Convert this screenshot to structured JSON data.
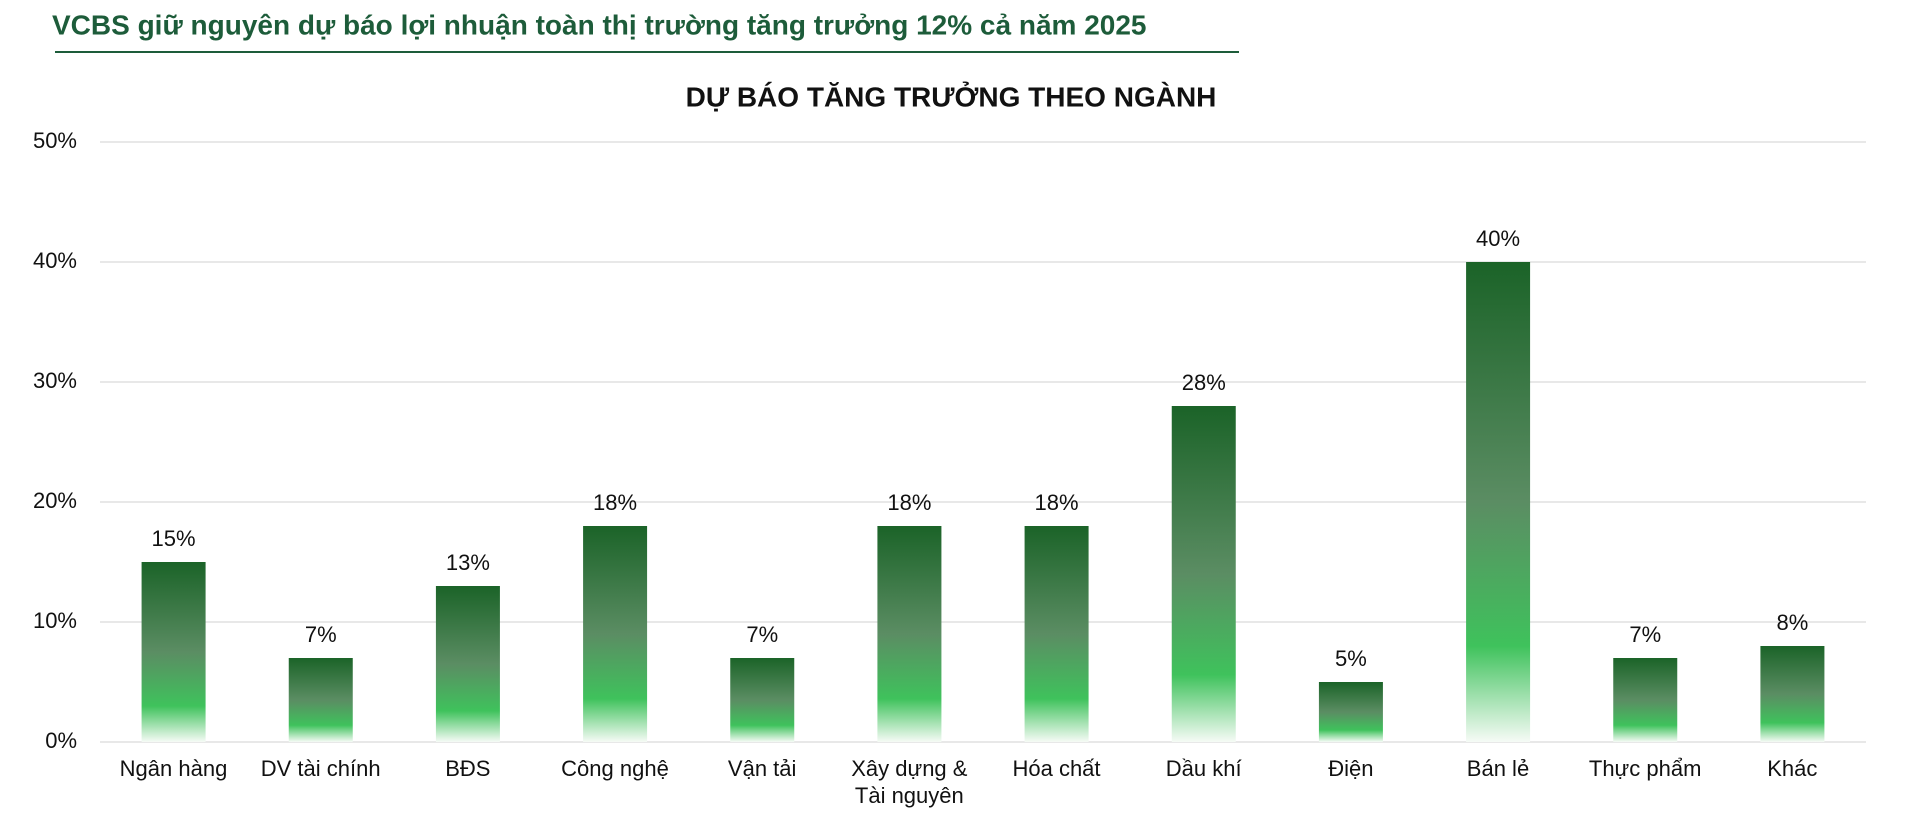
{
  "header": {
    "title": "VCBS giữ nguyên dự báo lợi nhuận toàn thị trường tăng trưởng 12% cả năm 2025"
  },
  "chart_data": {
    "type": "bar",
    "title": "DỰ BÁO TĂNG TRƯỞNG THEO NGÀNH",
    "categories": [
      "Ngân hàng",
      "DV tài chính",
      "BĐS",
      "Công nghệ",
      "Vận tải",
      "Xây dựng & Tài nguyên",
      "Hóa chất",
      "Dầu khí",
      "Điện",
      "Bán lẻ",
      "Thực phẩm",
      "Khác"
    ],
    "values": [
      15,
      7,
      13,
      18,
      7,
      18,
      18,
      28,
      5,
      40,
      7,
      8
    ],
    "value_labels": [
      "15%",
      "7%",
      "13%",
      "18%",
      "7%",
      "18%",
      "18%",
      "28%",
      "5%",
      "40%",
      "7%",
      "8%"
    ],
    "color": "#1b6328",
    "ylim": [
      0,
      50
    ],
    "yticks": [
      {
        "value": 0,
        "label": "0%"
      },
      {
        "value": 10,
        "label": "10%"
      },
      {
        "value": 20,
        "label": "20%"
      },
      {
        "value": 30,
        "label": "30%"
      },
      {
        "value": 40,
        "label": "40%"
      },
      {
        "value": 50,
        "label": "50%"
      }
    ],
    "grid": true
  }
}
